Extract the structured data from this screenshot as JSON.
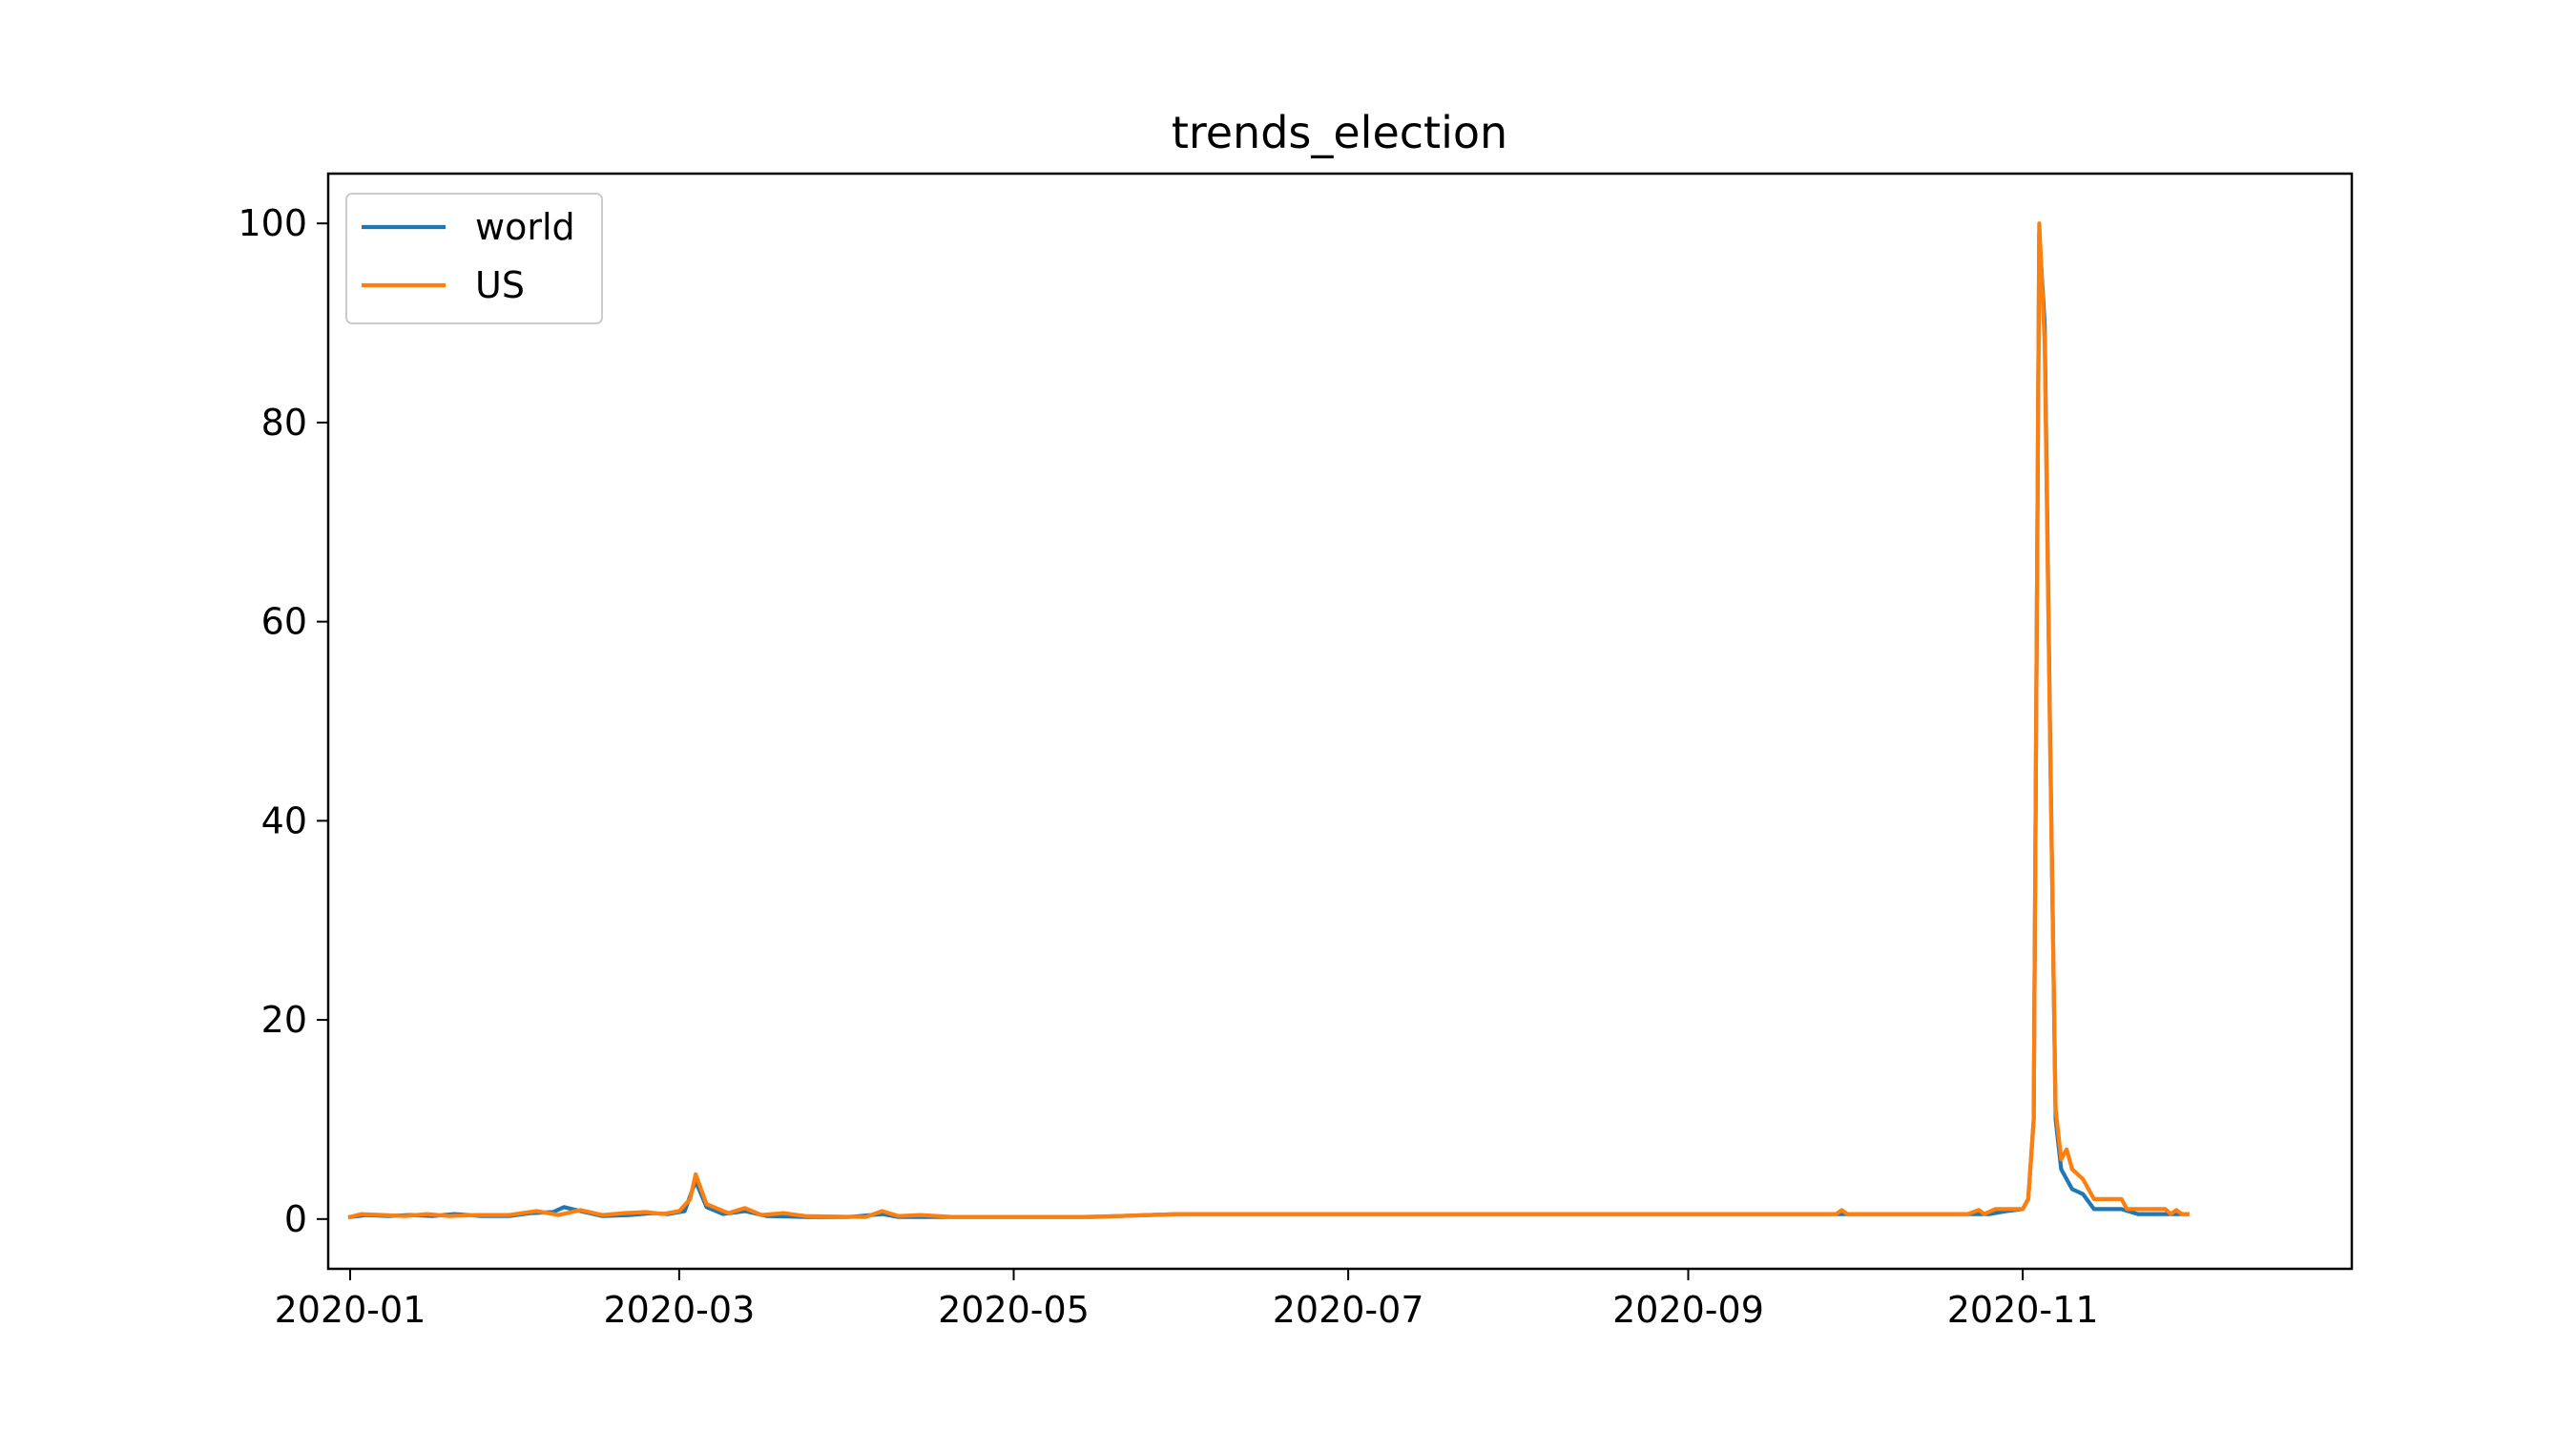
{
  "chart_data": {
    "type": "line",
    "title": "trends_election",
    "xlabel": "",
    "ylabel": "",
    "xlim": [
      "2019-12-28",
      "2020-12-31"
    ],
    "ylim": [
      -5,
      105
    ],
    "x_ticks": [
      "2020-01",
      "2020-03",
      "2020-05",
      "2020-07",
      "2020-09",
      "2020-11"
    ],
    "y_ticks": [
      0,
      20,
      40,
      60,
      80,
      100
    ],
    "grid": false,
    "legend": {
      "position": "top-left"
    },
    "series": [
      {
        "name": "world",
        "color": "#1f77b4",
        "points": [
          [
            "2020-01-01",
            0.2
          ],
          [
            "2020-01-04",
            0.4
          ],
          [
            "2020-01-08",
            0.3
          ],
          [
            "2020-01-12",
            0.4
          ],
          [
            "2020-01-16",
            0.3
          ],
          [
            "2020-01-20",
            0.5
          ],
          [
            "2020-01-25",
            0.3
          ],
          [
            "2020-01-30",
            0.3
          ],
          [
            "2020-02-03",
            0.6
          ],
          [
            "2020-02-07",
            0.7
          ],
          [
            "2020-02-09",
            1.2
          ],
          [
            "2020-02-12",
            0.8
          ],
          [
            "2020-02-16",
            0.3
          ],
          [
            "2020-02-21",
            0.4
          ],
          [
            "2020-02-25",
            0.6
          ],
          [
            "2020-02-28",
            0.5
          ],
          [
            "2020-03-02",
            0.8
          ],
          [
            "2020-03-04",
            3.8
          ],
          [
            "2020-03-06",
            1.2
          ],
          [
            "2020-03-09",
            0.5
          ],
          [
            "2020-03-13",
            0.8
          ],
          [
            "2020-03-17",
            0.3
          ],
          [
            "2020-03-24",
            0.2
          ],
          [
            "2020-04-01",
            0.2
          ],
          [
            "2020-04-07",
            0.5
          ],
          [
            "2020-04-10",
            0.2
          ],
          [
            "2020-04-20",
            0.2
          ],
          [
            "2020-05-01",
            0.2
          ],
          [
            "2020-05-15",
            0.2
          ],
          [
            "2020-05-31",
            0.5
          ],
          [
            "2020-07-01",
            0.5
          ],
          [
            "2020-08-01",
            0.5
          ],
          [
            "2020-09-01",
            0.5
          ],
          [
            "2020-09-30",
            0.5
          ],
          [
            "2020-10-15",
            0.5
          ],
          [
            "2020-10-22",
            0.5
          ],
          [
            "2020-10-26",
            0.5
          ],
          [
            "2020-10-29",
            0.8
          ],
          [
            "2020-11-01",
            1.0
          ],
          [
            "2020-11-02",
            2.0
          ],
          [
            "2020-11-03",
            10.0
          ],
          [
            "2020-11-04",
            99.0
          ],
          [
            "2020-11-05",
            90.0
          ],
          [
            "2020-11-06",
            48.0
          ],
          [
            "2020-11-07",
            10.0
          ],
          [
            "2020-11-08",
            5.0
          ],
          [
            "2020-11-10",
            3.0
          ],
          [
            "2020-11-12",
            2.5
          ],
          [
            "2020-11-14",
            1.0
          ],
          [
            "2020-11-19",
            1.0
          ],
          [
            "2020-11-22",
            0.5
          ],
          [
            "2020-12-01",
            0.5
          ]
        ]
      },
      {
        "name": "US",
        "color": "#ff7f0e",
        "points": [
          [
            "2020-01-01",
            0.2
          ],
          [
            "2020-01-03",
            0.5
          ],
          [
            "2020-01-07",
            0.4
          ],
          [
            "2020-01-11",
            0.3
          ],
          [
            "2020-01-15",
            0.5
          ],
          [
            "2020-01-19",
            0.3
          ],
          [
            "2020-01-24",
            0.4
          ],
          [
            "2020-01-30",
            0.4
          ],
          [
            "2020-02-04",
            0.8
          ],
          [
            "2020-02-08",
            0.4
          ],
          [
            "2020-02-12",
            0.9
          ],
          [
            "2020-02-16",
            0.4
          ],
          [
            "2020-02-20",
            0.6
          ],
          [
            "2020-02-24",
            0.7
          ],
          [
            "2020-02-27",
            0.5
          ],
          [
            "2020-03-01",
            0.8
          ],
          [
            "2020-03-03",
            2.0
          ],
          [
            "2020-03-04",
            4.5
          ],
          [
            "2020-03-06",
            1.5
          ],
          [
            "2020-03-10",
            0.6
          ],
          [
            "2020-03-13",
            1.1
          ],
          [
            "2020-03-16",
            0.4
          ],
          [
            "2020-03-20",
            0.6
          ],
          [
            "2020-03-24",
            0.3
          ],
          [
            "2020-04-04",
            0.2
          ],
          [
            "2020-04-07",
            0.8
          ],
          [
            "2020-04-10",
            0.3
          ],
          [
            "2020-04-14",
            0.4
          ],
          [
            "2020-04-20",
            0.2
          ],
          [
            "2020-05-01",
            0.2
          ],
          [
            "2020-05-12",
            0.2
          ],
          [
            "2020-05-20",
            0.3
          ],
          [
            "2020-05-31",
            0.5
          ],
          [
            "2020-07-01",
            0.5
          ],
          [
            "2020-08-01",
            0.5
          ],
          [
            "2020-09-01",
            0.5
          ],
          [
            "2020-09-28",
            0.5
          ],
          [
            "2020-09-29",
            0.9
          ],
          [
            "2020-09-30",
            0.5
          ],
          [
            "2020-10-22",
            0.5
          ],
          [
            "2020-10-24",
            0.9
          ],
          [
            "2020-10-25",
            0.5
          ],
          [
            "2020-10-27",
            1.0
          ],
          [
            "2020-11-01",
            1.0
          ],
          [
            "2020-11-02",
            2.0
          ],
          [
            "2020-11-03",
            10.0
          ],
          [
            "2020-11-04",
            100.0
          ],
          [
            "2020-11-05",
            88.0
          ],
          [
            "2020-11-06",
            47.0
          ],
          [
            "2020-11-07",
            11.0
          ],
          [
            "2020-11-08",
            6.0
          ],
          [
            "2020-11-09",
            7.0
          ],
          [
            "2020-11-10",
            5.0
          ],
          [
            "2020-11-12",
            4.0
          ],
          [
            "2020-11-14",
            2.0
          ],
          [
            "2020-11-19",
            2.0
          ],
          [
            "2020-11-20",
            1.0
          ],
          [
            "2020-11-27",
            1.0
          ],
          [
            "2020-11-28",
            0.5
          ],
          [
            "2020-11-29",
            0.9
          ],
          [
            "2020-11-30",
            0.5
          ],
          [
            "2020-12-01",
            0.5
          ]
        ]
      }
    ]
  }
}
